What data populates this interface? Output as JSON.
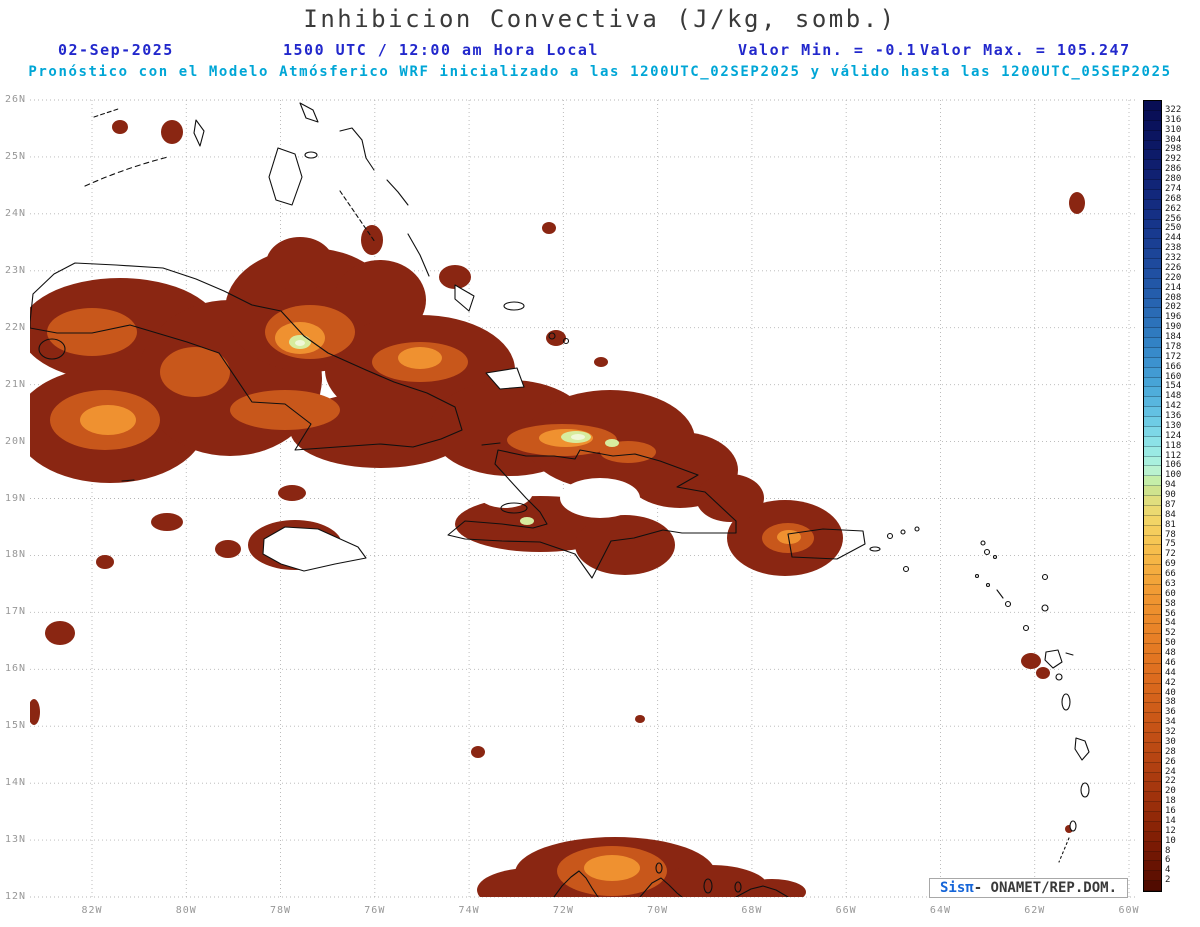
{
  "header": {
    "title": "Inhibicion Convectiva (J/kg, somb.)",
    "date": "02-Sep-2025",
    "time": "1500 UTC / 12:00 am Hora Local",
    "valor_min": "Valor Min. = -0.1",
    "valor_max": "Valor Max. = 105.247",
    "forecast": "Pronóstico con el Modelo Atmósferico WRF inicializado a las 1200UTC_02SEP2025 y válido hasta las 1200UTC_05SEP2025"
  },
  "map": {
    "lat_labels": [
      "26N",
      "25N",
      "24N",
      "23N",
      "22N",
      "21N",
      "20N",
      "19N",
      "18N",
      "17N",
      "16N",
      "15N",
      "14N",
      "13N",
      "12N"
    ],
    "lon_labels": [
      "82W",
      "80W",
      "78W",
      "76W",
      "74W",
      "72W",
      "70W",
      "68W",
      "66W",
      "64W",
      "62W",
      "60W"
    ]
  },
  "colorbar": {
    "values_top_down": [
      322,
      316,
      310,
      304,
      298,
      292,
      286,
      280,
      274,
      268,
      262,
      256,
      250,
      244,
      238,
      232,
      226,
      220,
      214,
      208,
      202,
      196,
      190,
      184,
      178,
      172,
      166,
      160,
      154,
      148,
      142,
      136,
      130,
      124,
      118,
      112,
      106,
      100,
      94,
      90,
      87,
      84,
      81,
      78,
      75,
      72,
      69,
      66,
      63,
      60,
      58,
      56,
      54,
      52,
      50,
      48,
      46,
      44,
      42,
      40,
      38,
      36,
      34,
      32,
      30,
      28,
      26,
      24,
      22,
      20,
      18,
      16,
      14,
      12,
      10,
      8,
      6,
      4,
      2
    ],
    "stops": [
      {
        "v": 0,
        "c": "#480800"
      },
      {
        "v": 2,
        "c": "#5a0e00"
      },
      {
        "v": 6,
        "c": "#6d1502"
      },
      {
        "v": 10,
        "c": "#7e1c04"
      },
      {
        "v": 14,
        "c": "#8e2607"
      },
      {
        "v": 18,
        "c": "#9d300b"
      },
      {
        "v": 24,
        "c": "#ae3d10"
      },
      {
        "v": 30,
        "c": "#bf4c14"
      },
      {
        "v": 36,
        "c": "#cd5a18"
      },
      {
        "v": 42,
        "c": "#da691d"
      },
      {
        "v": 48,
        "c": "#e37722"
      },
      {
        "v": 54,
        "c": "#ea8629"
      },
      {
        "v": 60,
        "c": "#f09731"
      },
      {
        "v": 66,
        "c": "#f3a83c"
      },
      {
        "v": 72,
        "c": "#f6b948"
      },
      {
        "v": 78,
        "c": "#f6ca58"
      },
      {
        "v": 84,
        "c": "#f0d76a"
      },
      {
        "v": 88,
        "c": "#e2dd7c"
      },
      {
        "v": 92,
        "c": "#cfe38e"
      },
      {
        "v": 96,
        "c": "#c4eca2"
      },
      {
        "v": 100,
        "c": "#c6f2bc"
      },
      {
        "v": 104,
        "c": "#b6f2d6"
      },
      {
        "v": 110,
        "c": "#a6efe0"
      },
      {
        "v": 118,
        "c": "#93e7e7"
      },
      {
        "v": 126,
        "c": "#7fd9e7"
      },
      {
        "v": 134,
        "c": "#6ccae5"
      },
      {
        "v": 144,
        "c": "#59b8e0"
      },
      {
        "v": 156,
        "c": "#48a5d8"
      },
      {
        "v": 170,
        "c": "#3b91ce"
      },
      {
        "v": 184,
        "c": "#307ec2"
      },
      {
        "v": 198,
        "c": "#2a6cb6"
      },
      {
        "v": 212,
        "c": "#245cab"
      },
      {
        "v": 226,
        "c": "#1f4da0"
      },
      {
        "v": 240,
        "c": "#1a4094"
      },
      {
        "v": 254,
        "c": "#163489"
      },
      {
        "v": 268,
        "c": "#132a7e"
      },
      {
        "v": 282,
        "c": "#102273"
      },
      {
        "v": 296,
        "c": "#0d1a68"
      },
      {
        "v": 310,
        "c": "#0a135e"
      },
      {
        "v": 322,
        "c": "#080e54"
      }
    ]
  },
  "credit": {
    "sis": "Sisπ",
    "rest": "- ONAMET/REP.DOM."
  },
  "chart_data": {
    "type": "heatmap",
    "title": "Inhibicion Convectiva (J/kg, somb.)",
    "units": "J/kg",
    "value_min": -0.1,
    "value_max": 105.247,
    "model": "WRF",
    "init_time": "1200UTC_02SEP2025",
    "valid_until": "1200UTC_05SEP2025",
    "run_date": "02-Sep-2025",
    "run_hour": "1500 UTC / 12:00 am Hora Local",
    "lat_axis_range": [
      "12N",
      "26N"
    ],
    "lon_axis_range": [
      "82W",
      "60W"
    ],
    "legend_position": "right"
  }
}
